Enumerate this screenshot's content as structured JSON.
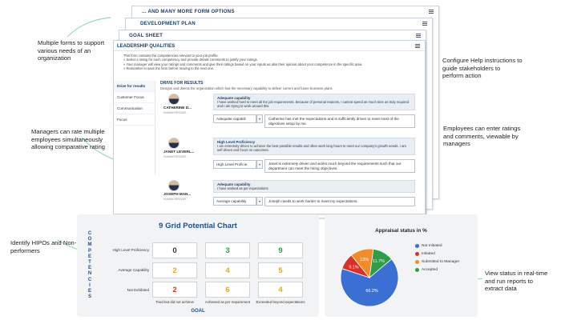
{
  "callouts": {
    "multiple_forms": "Multiple forms to support various needs of an organization",
    "managers_rate": "Managers can rate multiple employees simultaneously allowing comparative rating",
    "identify_hipos": "Identify HIPOs and Non-performers",
    "configure_help": "Configure Help instructions to guide stakeholders to perform action",
    "employees_enter": "Employees can enter ratings and comments, viewable by managers",
    "view_status": "View status in real-time and run reports to extract data"
  },
  "sheets": {
    "more_forms": "... AND MANY MORE FORM OPTIONS",
    "development_plan": "DEVELOPMENT PLAN",
    "goal_sheet": "GOAL SHEET"
  },
  "form": {
    "title": "LEADERSHIP QUALITIES",
    "intro": [
      "This form contains the competencies relevant to your job profile.",
      "»  Select a rating for each competency and provide details comments to justify your ratings.",
      "»  Your manager will view your ratings and comments and give their ratings based on your inputs as also their opinion about your competence in the specific area.",
      "»  Remember to save the form before moving to the next one."
    ],
    "nav": [
      "Drive for results",
      "Customer Focus",
      "Communication",
      "Focus"
    ],
    "section_title": "DRIVE FOR RESULTS",
    "section_desc": "Designs and directs the organization which has the necessary capability to deliver current and future business plans",
    "employees": [
      {
        "name": "CATHERINE D...",
        "role": "HUMAN RESOUR...",
        "level": "Adequate capability",
        "desc": "I have worked hard to meet all the job requirements. Because of personal reasons, I cannot spend as much time as truly required and I am trying to work around this.",
        "select": "Adequate capabili",
        "comment": "Catherine has met the expectations and is sufficiently driven to meet most of the objectives setup by me."
      },
      {
        "name": "JANET LEVERL...",
        "role": "HUMAN RESOUR...",
        "level": "High Level Proficiency",
        "desc": "I am extremely driven to achieve the best possible results and often work long hours to meet our company's growth needs. I am self driven and focus on outcomes.",
        "select": "High Level Proficie",
        "comment": "Janet is extremely driven and works much beyond the requirements such that our department can meet the hiring objectives."
      },
      {
        "name": "JOSEPH MAN...",
        "role": "HUMAN RESOUR...",
        "level": "Adequate capability",
        "desc": "I have worked as per expectations",
        "select": "Average capability",
        "comment": "Joseph needs to work harder to meet my expectations."
      }
    ]
  },
  "nine_grid": {
    "title": "9 Grid Potential Chart",
    "y_axis_label": "COMPETENCIES",
    "x_axis_label": "GOAL",
    "rows": [
      "High Level Proficiency",
      "Average Capability",
      "Not Exhibited"
    ],
    "columns": [
      "Tried but did not achieve",
      "Achieved as per requirement",
      "Exceeded beyond expectations"
    ],
    "cells": [
      [
        "0",
        "3",
        "9"
      ],
      [
        "2",
        "4",
        "5"
      ],
      [
        "2",
        "6",
        "4"
      ]
    ],
    "cell_colors": [
      [
        "#333333",
        "#2e9e46",
        "#2e9e46"
      ],
      [
        "#e6a817",
        "#e6a817",
        "#e6a817"
      ],
      [
        "#d9302c",
        "#e6a817",
        "#e6a817"
      ]
    ]
  },
  "chart_data": {
    "type": "pie",
    "title": "Appraisal status in %",
    "labels": [
      "Not Initiated",
      "Initiated",
      "Submitted to Manager",
      "Accepted"
    ],
    "values": [
      66.2,
      9.1,
      13,
      11.7
    ],
    "value_labels": [
      "66.2%",
      "9.1%",
      "13%",
      "11.7%"
    ],
    "colors": [
      "#3b6fd4",
      "#d9302c",
      "#f28c28",
      "#2e9e46"
    ]
  }
}
